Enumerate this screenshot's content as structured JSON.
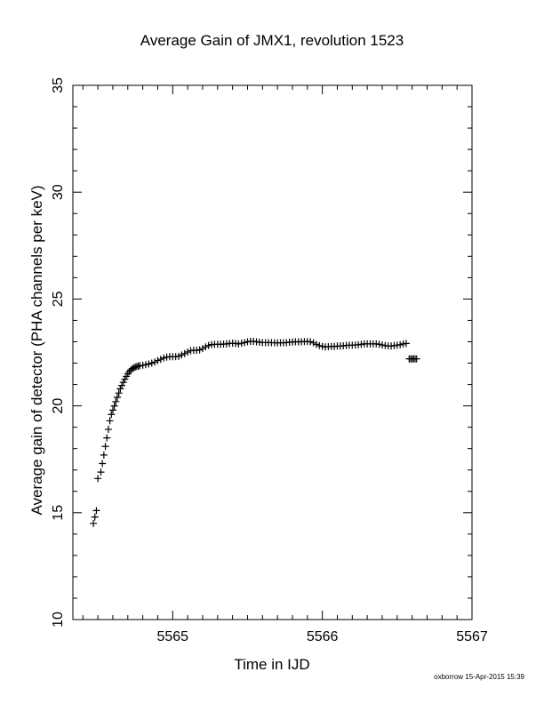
{
  "chart_data": {
    "type": "scatter",
    "title": "Average Gain of JMX1, revolution 1523",
    "xlabel": "Time in IJD",
    "ylabel": "Average gain of detector (PHA channels per keV)",
    "xlim": [
      5564.333,
      5567
    ],
    "ylim": [
      10,
      35
    ],
    "xticks": [
      "5565",
      "5566",
      "5567"
    ],
    "yticks": [
      "10",
      "15",
      "20",
      "25",
      "30",
      "35"
    ],
    "grid": false,
    "marker": "+",
    "series": [
      {
        "x": [
          5564.47,
          5564.48,
          5564.49,
          5564.5,
          5564.52,
          5564.53,
          5564.54,
          5564.55,
          5564.56,
          5564.57,
          5564.58,
          5564.59,
          5564.6,
          5564.61,
          5564.62,
          5564.63,
          5564.64,
          5564.65,
          5564.66,
          5564.67,
          5564.68,
          5564.69,
          5564.7,
          5564.71,
          5564.72,
          5564.73,
          5564.74,
          5564.75,
          5564.76,
          5564.77,
          5564.78,
          5564.8,
          5564.82,
          5564.84,
          5564.86,
          5564.88,
          5564.9,
          5564.92,
          5564.94,
          5564.96,
          5564.98,
          5565.0,
          5565.02,
          5565.04,
          5565.06,
          5565.08,
          5565.1,
          5565.12,
          5565.14,
          5565.16,
          5565.18,
          5565.2,
          5565.22,
          5565.24,
          5565.26,
          5565.28,
          5565.3,
          5565.32,
          5565.34,
          5565.36,
          5565.38,
          5565.4,
          5565.42,
          5565.44,
          5565.46,
          5565.48,
          5565.5,
          5565.52,
          5565.54,
          5565.56,
          5565.58,
          5565.6,
          5565.62,
          5565.64,
          5565.66,
          5565.68,
          5565.7,
          5565.72,
          5565.74,
          5565.76,
          5565.78,
          5565.8,
          5565.82,
          5565.84,
          5565.86,
          5565.88,
          5565.9,
          5565.92,
          5565.94,
          5565.96,
          5565.98,
          5566.0,
          5566.02,
          5566.04,
          5566.06,
          5566.08,
          5566.1,
          5566.12,
          5566.14,
          5566.16,
          5566.18,
          5566.2,
          5566.22,
          5566.24,
          5566.26,
          5566.28,
          5566.3,
          5566.32,
          5566.34,
          5566.36,
          5566.38,
          5566.4,
          5566.42,
          5566.44,
          5566.46,
          5566.48,
          5566.5,
          5566.52,
          5566.54,
          5566.56,
          5566.58,
          5566.59,
          5566.6,
          5566.61,
          5566.62,
          5566.63
        ],
        "y": [
          14.5,
          14.8,
          15.1,
          16.6,
          16.9,
          17.3,
          17.7,
          18.1,
          18.5,
          18.9,
          19.3,
          19.6,
          19.8,
          20.0,
          20.2,
          20.4,
          20.6,
          20.8,
          20.95,
          21.1,
          21.25,
          21.38,
          21.5,
          21.6,
          21.68,
          21.74,
          21.78,
          21.82,
          21.84,
          21.86,
          21.88,
          21.9,
          21.93,
          21.96,
          22.0,
          22.05,
          22.12,
          22.18,
          22.24,
          22.28,
          22.3,
          22.3,
          22.3,
          22.32,
          22.38,
          22.45,
          22.52,
          22.58,
          22.6,
          22.6,
          22.62,
          22.68,
          22.76,
          22.83,
          22.87,
          22.88,
          22.88,
          22.88,
          22.89,
          22.9,
          22.92,
          22.93,
          22.92,
          22.9,
          22.93,
          22.96,
          23.0,
          23.02,
          23.02,
          23.0,
          22.98,
          22.96,
          22.96,
          22.96,
          22.96,
          22.95,
          22.95,
          22.95,
          22.95,
          22.96,
          22.98,
          22.99,
          23.0,
          23.0,
          23.0,
          23.01,
          23.01,
          23.0,
          22.95,
          22.88,
          22.82,
          22.78,
          22.76,
          22.77,
          22.78,
          22.78,
          22.8,
          22.8,
          22.81,
          22.83,
          22.84,
          22.84,
          22.85,
          22.86,
          22.88,
          22.9,
          22.9,
          22.9,
          22.9,
          22.9,
          22.88,
          22.85,
          22.82,
          22.8,
          22.8,
          22.82,
          22.84,
          22.86,
          22.9,
          22.92,
          22.2,
          22.2,
          22.2,
          22.2,
          22.2,
          22.2
        ]
      }
    ]
  },
  "footer": {
    "credit": "oxborrow 15-Apr-2015 15:39"
  }
}
